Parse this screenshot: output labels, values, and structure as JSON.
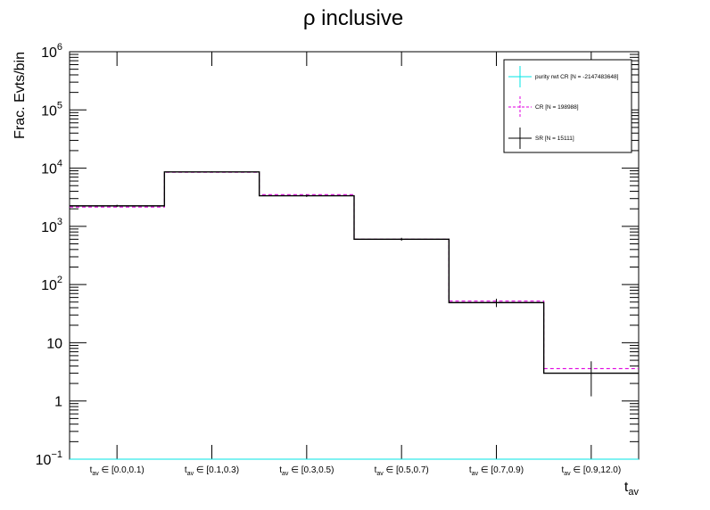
{
  "chart_data": {
    "type": "line",
    "title": "ρ inclusive",
    "xlabel_main": "t",
    "xlabel_sub": "av",
    "ylabel": "Frac. Evts/bin",
    "y_scale": "log",
    "ylim": [
      0.1,
      1000000
    ],
    "y_ticks": [
      {
        "value": 0.1,
        "base": "10",
        "exp": "−1"
      },
      {
        "value": 1,
        "base": "1",
        "exp": ""
      },
      {
        "value": 10,
        "base": "10",
        "exp": ""
      },
      {
        "value": 100,
        "base": "10",
        "exp": "2"
      },
      {
        "value": 1000,
        "base": "10",
        "exp": "3"
      },
      {
        "value": 10000,
        "base": "10",
        "exp": "4"
      },
      {
        "value": 100000,
        "base": "10",
        "exp": "5"
      },
      {
        "value": 1000000,
        "base": "10",
        "exp": "6"
      }
    ],
    "categories": [
      {
        "main": "t",
        "sub": "av",
        "rest": " ∈ [0.0,0.1)"
      },
      {
        "main": "t",
        "sub": "av",
        "rest": " ∈ [0.1,0.3)"
      },
      {
        "main": "t",
        "sub": "av",
        "rest": " ∈ [0.3,0.5)"
      },
      {
        "main": "t",
        "sub": "av",
        "rest": " ∈ [0.5,0.7)"
      },
      {
        "main": "t",
        "sub": "av",
        "rest": " ∈ [0.7,0.9)"
      },
      {
        "main": "t",
        "sub": "av",
        "rest": " ∈ [0.9,12.0)"
      }
    ],
    "legend_position": "top-right",
    "series": [
      {
        "name": "purity rwt CR [N = -2147483648]",
        "color": "#00e5e5",
        "style": "solid",
        "values": [
          0.1,
          0.1,
          0.1,
          0.1,
          0.1,
          0.1
        ]
      },
      {
        "name": "CR [N = 198988]",
        "color": "#e000e0",
        "style": "dashed",
        "values": [
          2150,
          8500,
          3500,
          600,
          52,
          3.6
        ]
      },
      {
        "name": "SR [N = 15111]",
        "color": "#000000",
        "style": "solid",
        "values": [
          2250,
          8600,
          3350,
          600,
          49,
          3.0
        ],
        "errors": [
          100,
          200,
          150,
          35,
          8,
          1.8
        ]
      }
    ]
  }
}
